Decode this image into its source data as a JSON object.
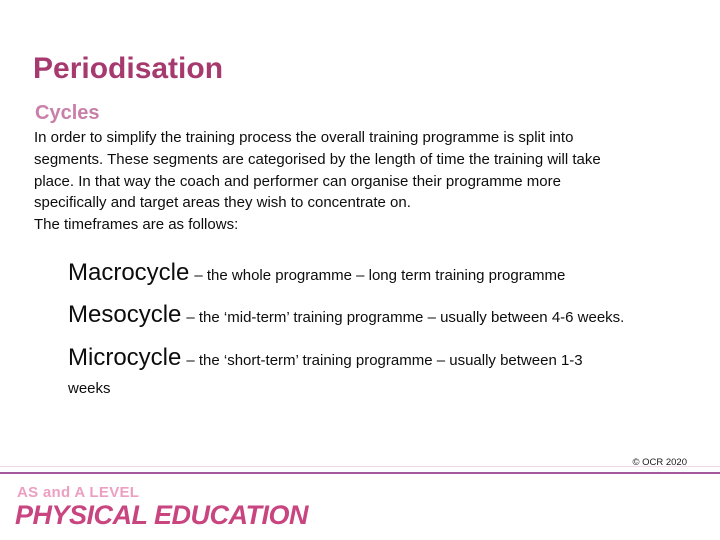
{
  "slide": {
    "title": "Periodisation",
    "subtitle": "Cycles",
    "paragraph_lines": [
      "In order to simplify the training process the overall training programme is split into",
      "segments. These segments are categorised by the length of time the training will take",
      "place. In that way the coach and performer can organise their programme more",
      "specifically and target areas they wish to concentrate on.",
      "The timeframes are as follows:"
    ],
    "cycles": [
      {
        "term": "Macrocycle",
        "definition": "– the whole programme – long term training programme",
        "definition_line2": ""
      },
      {
        "term": "Mesocycle",
        "definition": "– the ‘mid-term’ training programme – usually between 4-6 weeks.",
        "definition_line2": ""
      },
      {
        "term": "Microcycle",
        "definition": "– the ‘short-term’ training programme – usually between 1-3",
        "definition_line2": "weeks"
      }
    ],
    "footer": {
      "copyright": "© OCR 2020"
    },
    "brand": {
      "level": "AS and A LEVEL",
      "subject": "PHYSICAL EDUCATION"
    },
    "colors": {
      "title": "#a63a6e",
      "subtitle": "#c97fa9",
      "body_text": "#0d0d0d",
      "divider": "#a4599c",
      "divider_faint": "#f2d7e8",
      "brand_level": "#ec9fc1",
      "brand_subject": "#c84580",
      "copyright_text": "#1a1a1a",
      "background": "#ffffff"
    }
  }
}
